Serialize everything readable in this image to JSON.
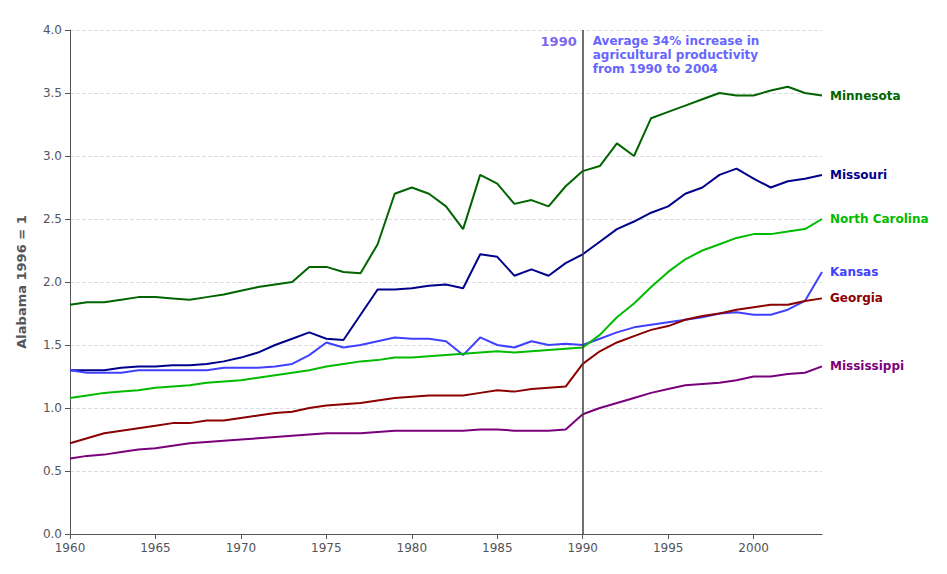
{
  "chart_data": {
    "type": "line",
    "x": [
      1960,
      1961,
      1962,
      1963,
      1964,
      1965,
      1966,
      1967,
      1968,
      1969,
      1970,
      1971,
      1972,
      1973,
      1974,
      1975,
      1976,
      1977,
      1978,
      1979,
      1980,
      1981,
      1982,
      1983,
      1984,
      1985,
      1986,
      1987,
      1988,
      1989,
      1990,
      1991,
      1992,
      1993,
      1994,
      1995,
      1996,
      1997,
      1998,
      1999,
      2000,
      2001,
      2002,
      2003,
      2004
    ],
    "series": [
      {
        "name": "Minnesota",
        "color": "#006400",
        "values": [
          1.82,
          1.84,
          1.84,
          1.86,
          1.88,
          1.88,
          1.87,
          1.86,
          1.88,
          1.9,
          1.93,
          1.96,
          1.98,
          2.0,
          2.12,
          2.12,
          2.08,
          2.07,
          2.3,
          2.7,
          2.75,
          2.7,
          2.6,
          2.42,
          2.85,
          2.78,
          2.62,
          2.65,
          2.6,
          2.76,
          2.88,
          2.92,
          3.1,
          3.0,
          3.3,
          3.35,
          3.4,
          3.45,
          3.5,
          3.48,
          3.48,
          3.52,
          3.55,
          3.5,
          3.48
        ]
      },
      {
        "name": "Missouri",
        "color": "#00008B",
        "values": [
          1.3,
          1.3,
          1.3,
          1.32,
          1.33,
          1.33,
          1.34,
          1.34,
          1.35,
          1.37,
          1.4,
          1.44,
          1.5,
          1.55,
          1.6,
          1.55,
          1.54,
          1.74,
          1.94,
          1.94,
          1.95,
          1.97,
          1.98,
          1.95,
          2.22,
          2.2,
          2.05,
          2.1,
          2.05,
          2.15,
          2.22,
          2.32,
          2.42,
          2.48,
          2.55,
          2.6,
          2.7,
          2.75,
          2.85,
          2.9,
          2.82,
          2.75,
          2.8,
          2.82,
          2.85
        ]
      },
      {
        "name": "Kansas",
        "color": "#4040FF",
        "values": [
          1.3,
          1.28,
          1.28,
          1.28,
          1.3,
          1.3,
          1.3,
          1.3,
          1.3,
          1.32,
          1.32,
          1.32,
          1.33,
          1.35,
          1.42,
          1.52,
          1.48,
          1.5,
          1.53,
          1.56,
          1.55,
          1.55,
          1.53,
          1.42,
          1.56,
          1.5,
          1.48,
          1.53,
          1.5,
          1.51,
          1.5,
          1.55,
          1.6,
          1.64,
          1.66,
          1.68,
          1.7,
          1.72,
          1.75,
          1.76,
          1.74,
          1.74,
          1.78,
          1.85,
          2.08
        ]
      },
      {
        "name": "North Carolina",
        "color": "#00BB00",
        "values": [
          1.08,
          1.1,
          1.12,
          1.13,
          1.14,
          1.16,
          1.17,
          1.18,
          1.2,
          1.21,
          1.22,
          1.24,
          1.26,
          1.28,
          1.3,
          1.33,
          1.35,
          1.37,
          1.38,
          1.4,
          1.4,
          1.41,
          1.42,
          1.43,
          1.44,
          1.45,
          1.44,
          1.45,
          1.46,
          1.47,
          1.48,
          1.58,
          1.72,
          1.83,
          1.96,
          2.08,
          2.18,
          2.25,
          2.3,
          2.35,
          2.38,
          2.38,
          2.4,
          2.42,
          2.5
        ]
      },
      {
        "name": "Georgia",
        "color": "#8B0000",
        "values": [
          0.72,
          0.76,
          0.8,
          0.82,
          0.84,
          0.86,
          0.88,
          0.88,
          0.9,
          0.9,
          0.92,
          0.94,
          0.96,
          0.97,
          1.0,
          1.02,
          1.03,
          1.04,
          1.06,
          1.08,
          1.09,
          1.1,
          1.1,
          1.1,
          1.12,
          1.14,
          1.13,
          1.15,
          1.16,
          1.17,
          1.35,
          1.45,
          1.52,
          1.57,
          1.62,
          1.65,
          1.7,
          1.73,
          1.75,
          1.78,
          1.8,
          1.82,
          1.82,
          1.85,
          1.87
        ]
      },
      {
        "name": "Mississippi",
        "color": "#7B007B",
        "values": [
          0.6,
          0.62,
          0.63,
          0.65,
          0.67,
          0.68,
          0.7,
          0.72,
          0.73,
          0.74,
          0.75,
          0.76,
          0.77,
          0.78,
          0.79,
          0.8,
          0.8,
          0.8,
          0.81,
          0.82,
          0.82,
          0.82,
          0.82,
          0.82,
          0.83,
          0.83,
          0.82,
          0.82,
          0.82,
          0.83,
          0.95,
          1.0,
          1.04,
          1.08,
          1.12,
          1.15,
          1.18,
          1.19,
          1.2,
          1.22,
          1.25,
          1.25,
          1.27,
          1.28,
          1.33
        ]
      }
    ],
    "ylabel": "Alabama 1996 = 1",
    "xlim": [
      1960,
      2004
    ],
    "ylim": [
      0,
      4
    ],
    "xticks": [
      1960,
      1965,
      1970,
      1975,
      1980,
      1985,
      1990,
      1995,
      2000
    ],
    "yticks": [
      {
        "value": 0,
        "label": "0.0"
      },
      0.5,
      {
        "value": 1,
        "label": "1.0"
      },
      1.5,
      {
        "value": 2,
        "label": "2.0"
      },
      2.5,
      {
        "value": 3,
        "label": "3.0"
      },
      3.5,
      {
        "value": 4,
        "label": "4.0"
      }
    ],
    "grid": true,
    "vline": {
      "x": 1990,
      "color": "#404040"
    },
    "annotations": [
      {
        "text": "1990",
        "x": 1990,
        "color": "#7B68EE"
      },
      {
        "text": "Average 34% increase in\nagricultural productivity\nfrom 1990 to 2004",
        "x": 1990,
        "color": "#6666FF"
      }
    ]
  }
}
